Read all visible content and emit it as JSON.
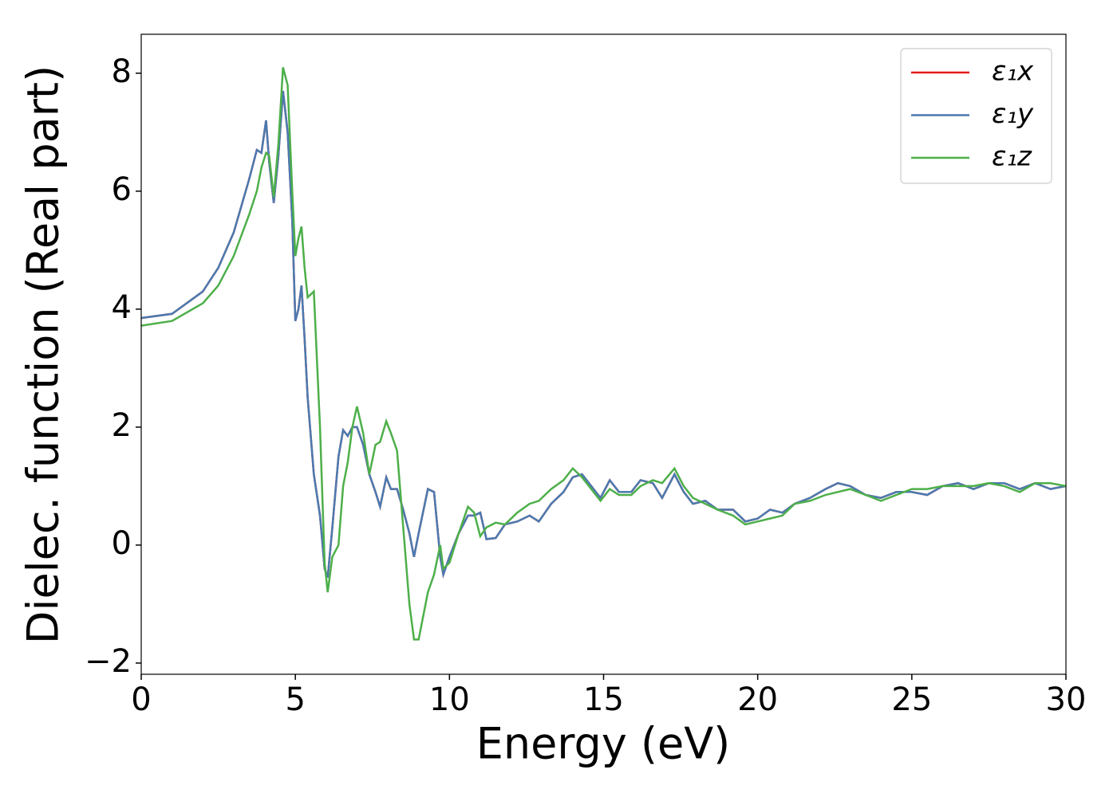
{
  "chart_data": {
    "type": "line",
    "xlabel": "Energy (eV)",
    "ylabel": "Dielec. function (Real part)",
    "x": [
      0,
      1,
      2,
      2.5,
      3,
      3.5,
      3.75,
      3.9,
      4.05,
      4.15,
      4.3,
      4.45,
      4.6,
      4.75,
      4.9,
      5.0,
      5.1,
      5.2,
      5.3,
      5.4,
      5.6,
      5.8,
      5.95,
      6.05,
      6.2,
      6.4,
      6.55,
      6.7,
      6.85,
      7.0,
      7.2,
      7.4,
      7.6,
      7.75,
      7.95,
      8.1,
      8.3,
      8.5,
      8.7,
      8.85,
      9.0,
      9.3,
      9.5,
      9.7,
      9.8,
      10.0,
      10.3,
      10.6,
      10.8,
      11.0,
      11.2,
      11.5,
      11.8,
      12.2,
      12.6,
      12.9,
      13.3,
      13.7,
      14.0,
      14.3,
      14.6,
      14.9,
      15.2,
      15.5,
      15.9,
      16.2,
      16.6,
      16.9,
      17.3,
      17.6,
      17.9,
      18.3,
      18.7,
      19.2,
      19.6,
      20.0,
      20.4,
      20.8,
      21.2,
      21.7,
      22.2,
      22.6,
      23.0,
      23.5,
      24.0,
      24.5,
      25.0,
      25.5,
      26.0,
      26.5,
      27.0,
      27.5,
      28.0,
      28.5,
      29.0,
      29.5,
      30.0
    ],
    "series": [
      {
        "name": "ε₁x",
        "color": "#e41a1c",
        "values": [
          3.85,
          3.92,
          4.3,
          4.7,
          5.3,
          6.2,
          6.7,
          6.65,
          7.2,
          6.5,
          5.8,
          6.6,
          7.7,
          7.0,
          5.5,
          3.8,
          4.0,
          4.4,
          3.5,
          2.5,
          1.2,
          0.5,
          -0.4,
          -0.55,
          0.3,
          1.5,
          1.95,
          1.85,
          2.0,
          2.0,
          1.7,
          1.2,
          0.9,
          0.65,
          1.15,
          0.95,
          0.95,
          0.6,
          0.2,
          -0.2,
          0.2,
          0.95,
          0.9,
          -0.2,
          -0.5,
          -0.2,
          0.2,
          0.5,
          0.5,
          0.55,
          0.1,
          0.12,
          0.35,
          0.4,
          0.5,
          0.4,
          0.7,
          0.9,
          1.15,
          1.2,
          1.0,
          0.8,
          1.1,
          0.9,
          0.9,
          1.1,
          1.05,
          0.8,
          1.2,
          0.9,
          0.7,
          0.75,
          0.6,
          0.6,
          0.4,
          0.45,
          0.6,
          0.55,
          0.7,
          0.8,
          0.95,
          1.05,
          1.0,
          0.85,
          0.8,
          0.9,
          0.9,
          0.85,
          1.0,
          1.05,
          0.95,
          1.05,
          1.05,
          0.95,
          1.05,
          0.95,
          1.0
        ]
      },
      {
        "name": "ε₁y",
        "color": "#4a7ab0",
        "values": [
          3.85,
          3.92,
          4.3,
          4.7,
          5.3,
          6.2,
          6.7,
          6.65,
          7.2,
          6.5,
          5.8,
          6.6,
          7.7,
          7.0,
          5.5,
          3.8,
          4.0,
          4.4,
          3.5,
          2.5,
          1.2,
          0.5,
          -0.4,
          -0.55,
          0.3,
          1.5,
          1.95,
          1.85,
          2.0,
          2.0,
          1.7,
          1.2,
          0.9,
          0.65,
          1.15,
          0.95,
          0.95,
          0.6,
          0.2,
          -0.2,
          0.2,
          0.95,
          0.9,
          -0.2,
          -0.5,
          -0.2,
          0.2,
          0.5,
          0.5,
          0.55,
          0.1,
          0.12,
          0.35,
          0.4,
          0.5,
          0.4,
          0.7,
          0.9,
          1.15,
          1.2,
          1.0,
          0.8,
          1.1,
          0.9,
          0.9,
          1.1,
          1.05,
          0.8,
          1.2,
          0.9,
          0.7,
          0.75,
          0.6,
          0.6,
          0.4,
          0.45,
          0.6,
          0.55,
          0.7,
          0.8,
          0.95,
          1.05,
          1.0,
          0.85,
          0.8,
          0.9,
          0.9,
          0.85,
          1.0,
          1.05,
          0.95,
          1.05,
          1.05,
          0.95,
          1.05,
          0.95,
          1.0
        ]
      },
      {
        "name": "ε₁z",
        "color": "#4daf4a",
        "values": [
          3.72,
          3.8,
          4.1,
          4.4,
          4.9,
          5.6,
          6.0,
          6.4,
          6.65,
          6.6,
          5.9,
          6.8,
          8.1,
          7.8,
          6.0,
          4.9,
          5.2,
          5.4,
          4.7,
          4.2,
          4.3,
          2.0,
          -0.3,
          -0.8,
          -0.2,
          0.0,
          1.0,
          1.4,
          2.0,
          2.35,
          1.9,
          1.2,
          1.7,
          1.75,
          2.1,
          1.9,
          1.6,
          0.3,
          -1.0,
          -1.6,
          -1.6,
          -0.8,
          -0.5,
          0.0,
          -0.4,
          -0.3,
          0.2,
          0.65,
          0.55,
          0.15,
          0.3,
          0.38,
          0.35,
          0.55,
          0.7,
          0.75,
          0.95,
          1.1,
          1.3,
          1.15,
          0.95,
          0.75,
          0.95,
          0.85,
          0.85,
          1.0,
          1.1,
          1.05,
          1.3,
          1.0,
          0.8,
          0.7,
          0.6,
          0.5,
          0.35,
          0.4,
          0.45,
          0.5,
          0.7,
          0.75,
          0.85,
          0.9,
          0.95,
          0.85,
          0.75,
          0.85,
          0.95,
          0.95,
          1.0,
          1.0,
          1.0,
          1.05,
          1.0,
          0.9,
          1.05,
          1.05,
          1.0
        ]
      }
    ],
    "xlim": [
      0,
      30
    ],
    "xticks": [
      0,
      5,
      10,
      15,
      20,
      25,
      30
    ],
    "ylim": [
      -2.19,
      8.66
    ],
    "yticks": [
      {
        "value": -2,
        "label": "−2"
      },
      0,
      2,
      4,
      6,
      8
    ],
    "grid": false,
    "legend": "upper right"
  }
}
